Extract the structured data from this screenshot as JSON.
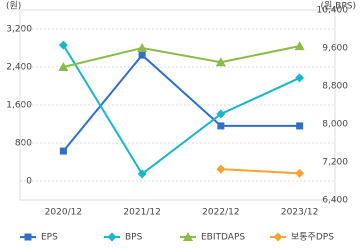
{
  "chart_data": {
    "type": "line",
    "y_label": "(원)",
    "y2_label": "(원,BPS)",
    "categories": [
      "2020/12",
      "2021/12",
      "2022/12",
      "2023/12"
    ],
    "series": [
      {
        "name": "EPS",
        "color": "#2f6fc4",
        "marker": "square",
        "axis": "y",
        "values": [
          630,
          2650,
          1160,
          1160
        ]
      },
      {
        "name": "BPS",
        "color": "#19b5c9",
        "marker": "diamond",
        "axis": "y2",
        "values": [
          9660,
          6950,
          8210,
          8970
        ]
      },
      {
        "name": "EBITDAPS",
        "color": "#8bbb4a",
        "marker": "triangle",
        "axis": "y",
        "values": [
          2400,
          2800,
          2500,
          2840
        ]
      },
      {
        "name": "보통주DPS",
        "color": "#f3a431",
        "marker": "diamond",
        "axis": "y",
        "values": [
          null,
          null,
          250,
          160
        ]
      }
    ],
    "ylim": [
      -400,
      3600
    ],
    "yticks": [
      0,
      800,
      {
        "value": 1600,
        "label": "1,600"
      },
      {
        "value": 2400,
        "label": "2,400"
      },
      {
        "value": 3200,
        "label": "3,200"
      }
    ],
    "y2lim": [
      6400,
      10400
    ],
    "y2ticks": [
      {
        "value": 6400,
        "label": "6,400"
      },
      {
        "value": 7200,
        "label": "7,200"
      },
      {
        "value": 8000,
        "label": "8,000"
      },
      {
        "value": 8800,
        "label": "8,800"
      },
      {
        "value": 9600,
        "label": "9,600"
      },
      {
        "value": 10400,
        "label": "10,400"
      }
    ],
    "grid": true
  }
}
